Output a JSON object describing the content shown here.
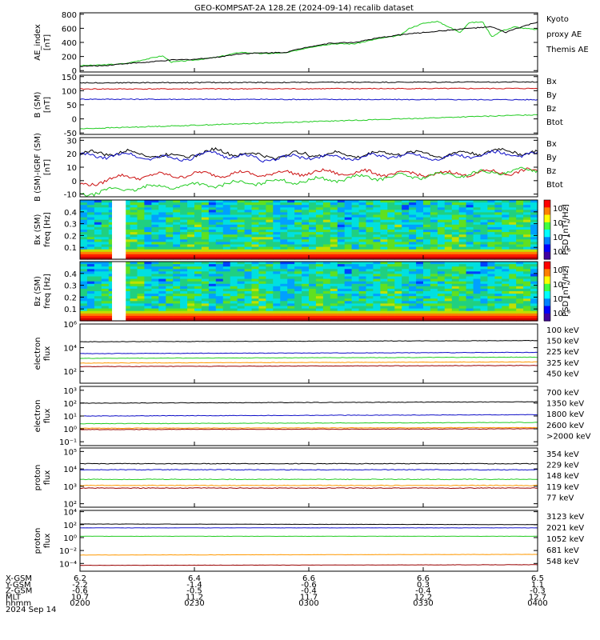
{
  "title": "GEO-KOMPSAT-2A 128.2E (2024-09-14) recalib dataset",
  "colors": {
    "black": "#000000",
    "blue": "#1010c8",
    "green": "#22cc22",
    "red": "#cc1010",
    "orange": "#ff9900",
    "darkred": "#990000",
    "lightgreen": "#33dd33"
  },
  "chart_data": [
    {
      "type": "line",
      "name": "ae",
      "ylabel": "AE_index\n[nT]",
      "ylim": [
        -20,
        820
      ],
      "yticks": [
        {
          "v": 800,
          "t": "800"
        },
        {
          "v": 600,
          "t": "600"
        },
        {
          "v": 400,
          "t": "400"
        },
        {
          "v": 200,
          "t": "200"
        },
        {
          "v": 0,
          "t": "0"
        }
      ],
      "legend": [
        {
          "text": "Kyoto",
          "color": "green"
        },
        {
          "text": "proxy AE",
          "color": "green"
        },
        {
          "text": "Themis AE",
          "color": "black"
        }
      ],
      "series": [
        {
          "name": "Kyoto",
          "color": "green",
          "x": [
            0,
            0.05,
            0.1,
            0.15,
            0.18,
            0.2,
            0.25,
            0.3,
            0.35,
            0.4,
            0.45,
            0.5,
            0.55,
            0.6,
            0.65,
            0.7,
            0.72,
            0.75,
            0.78,
            0.8,
            0.83,
            0.85,
            0.88,
            0.9,
            0.92,
            0.95,
            0.97,
            1.0
          ],
          "y": [
            70,
            80,
            100,
            170,
            210,
            120,
            150,
            190,
            260,
            240,
            250,
            330,
            380,
            380,
            450,
            500,
            600,
            670,
            700,
            640,
            540,
            680,
            690,
            480,
            560,
            620,
            600,
            580
          ]
        },
        {
          "name": "Themis AE",
          "color": "black",
          "x": [
            0,
            0.05,
            0.1,
            0.15,
            0.2,
            0.25,
            0.3,
            0.35,
            0.4,
            0.45,
            0.5,
            0.55,
            0.6,
            0.65,
            0.7,
            0.75,
            0.8,
            0.85,
            0.9,
            0.93,
            0.95,
            1.0
          ],
          "y": [
            60,
            70,
            100,
            120,
            150,
            160,
            190,
            240,
            250,
            260,
            340,
            390,
            400,
            460,
            510,
            540,
            570,
            600,
            620,
            540,
            590,
            690
          ]
        }
      ]
    },
    {
      "type": "line",
      "name": "bsm",
      "ylabel": "B (SM)\n[nT]",
      "ylim": [
        -55,
        155
      ],
      "yticks": [
        {
          "v": 150,
          "t": "150"
        },
        {
          "v": 100,
          "t": "100"
        },
        {
          "v": 50,
          "t": "50"
        },
        {
          "v": 0,
          "t": "0"
        },
        {
          "v": -50,
          "t": "-50"
        }
      ],
      "legend": [
        {
          "text": "Bx",
          "color": "blue"
        },
        {
          "text": "By",
          "color": "green"
        },
        {
          "text": "Bz",
          "color": "red"
        },
        {
          "text": "Btot",
          "color": "black"
        }
      ],
      "series": [
        {
          "name": "Btot",
          "color": "black",
          "x": [
            0,
            1
          ],
          "y": [
            128,
            131
          ]
        },
        {
          "name": "Bz",
          "color": "red",
          "x": [
            0,
            1
          ],
          "y": [
            106,
            108
          ]
        },
        {
          "name": "Bx",
          "color": "blue",
          "x": [
            0,
            1
          ],
          "y": [
            70,
            68
          ]
        },
        {
          "name": "By",
          "color": "green",
          "x": [
            0,
            0.5,
            1
          ],
          "y": [
            -35,
            -10,
            15
          ]
        }
      ]
    },
    {
      "type": "line",
      "name": "bdiff",
      "ylabel": "B (SM)-IGRF (SM)\n[nT]",
      "ylim": [
        -12,
        32
      ],
      "yticks": [
        {
          "v": 30,
          "t": "30"
        },
        {
          "v": 20,
          "t": "20"
        },
        {
          "v": 10,
          "t": "10"
        },
        {
          "v": 0,
          "t": "0"
        },
        {
          "v": -10,
          "t": "-10"
        }
      ],
      "legend": [
        {
          "text": "Bx",
          "color": "blue"
        },
        {
          "text": "By",
          "color": "green"
        },
        {
          "text": "Bz",
          "color": "red"
        },
        {
          "text": "Btot",
          "color": "black"
        }
      ],
      "series": [
        {
          "name": "Btot",
          "color": "black",
          "x": [
            0,
            0.1,
            0.2,
            0.3,
            0.4,
            0.5,
            0.6,
            0.7,
            0.8,
            0.9,
            1.0
          ],
          "y": [
            20,
            21,
            18,
            22,
            18,
            20,
            19,
            21,
            19,
            22,
            21
          ]
        },
        {
          "name": "Bx",
          "color": "blue",
          "x": [
            0,
            0.1,
            0.2,
            0.3,
            0.4,
            0.5,
            0.6,
            0.7,
            0.8,
            0.9,
            1.0
          ],
          "y": [
            18,
            19,
            16,
            20,
            16,
            18,
            17,
            19,
            17,
            20,
            19
          ]
        },
        {
          "name": "Bz",
          "color": "red",
          "x": [
            0,
            0.05,
            0.1,
            0.2,
            0.3,
            0.4,
            0.5,
            0.6,
            0.7,
            0.8,
            0.9,
            1.0
          ],
          "y": [
            -4,
            0,
            3,
            4,
            5,
            5,
            6,
            6,
            5,
            5,
            6,
            7
          ]
        },
        {
          "name": "By",
          "color": "green",
          "x": [
            0,
            0.1,
            0.2,
            0.3,
            0.4,
            0.5,
            0.6,
            0.7,
            0.8,
            0.9,
            1.0
          ],
          "y": [
            -10,
            -6,
            -4,
            -3,
            -1,
            0,
            2,
            3,
            4,
            6,
            8
          ]
        }
      ]
    },
    {
      "type": "heatmap",
      "name": "bx-spec",
      "ylabel": "Bx (SM)\nfreq [Hz]",
      "ylim": [
        0,
        0.5
      ],
      "yticks": [
        {
          "v": 0.4,
          "t": "0.4"
        },
        {
          "v": 0.3,
          "t": "0.3"
        },
        {
          "v": 0.2,
          "t": "0.2"
        },
        {
          "v": 0.1,
          "t": "0.1"
        }
      ],
      "gap": [
        0.07,
        0.1
      ],
      "colorbar_label": "PSD [nT²/Hz]",
      "colorbar_ticks": [
        "10⁰",
        "10⁻²",
        "10⁻⁴",
        "10⁻⁶"
      ]
    },
    {
      "type": "heatmap",
      "name": "bz-spec",
      "ylabel": "Bz (SM)\nfreq [Hz]",
      "ylim": [
        0,
        0.5
      ],
      "yticks": [
        {
          "v": 0.4,
          "t": "0.4"
        },
        {
          "v": 0.3,
          "t": "0.3"
        },
        {
          "v": 0.2,
          "t": "0.2"
        },
        {
          "v": 0.1,
          "t": "0.1"
        }
      ],
      "gap": [
        0.07,
        0.1
      ],
      "colorbar_label": "PSD [nT²/Hz]",
      "colorbar_ticks": [
        "10⁰",
        "10⁻²",
        "10⁻⁴",
        "10⁻⁶"
      ]
    },
    {
      "type": "line",
      "name": "e-low",
      "log": true,
      "ylabel": "electron\nflux",
      "ylim": [
        1,
        6
      ],
      "yticks": [
        {
          "v": 6,
          "t": "10⁶"
        },
        {
          "v": 4,
          "t": "10⁴"
        },
        {
          "v": 2,
          "t": "10²"
        }
      ],
      "legend": [
        {
          "text": "100 keV",
          "color": "black"
        },
        {
          "text": "150 keV",
          "color": "blue"
        },
        {
          "text": "225 keV",
          "color": "green"
        },
        {
          "text": "325 keV",
          "color": "orange"
        },
        {
          "text": "450 keV",
          "color": "darkred"
        }
      ],
      "series": [
        {
          "name": "100 keV",
          "color": "black",
          "x": [
            0,
            1
          ],
          "y": [
            4.5,
            4.6
          ]
        },
        {
          "name": "150 keV",
          "color": "blue",
          "x": [
            0,
            1
          ],
          "y": [
            3.5,
            3.6
          ]
        },
        {
          "name": "225 keV",
          "color": "green",
          "x": [
            0,
            1
          ],
          "y": [
            3.1,
            3.2
          ]
        },
        {
          "name": "325 keV",
          "color": "orange",
          "x": [
            0,
            1
          ],
          "y": [
            2.7,
            2.8
          ]
        },
        {
          "name": "450 keV",
          "color": "darkred",
          "x": [
            0,
            1
          ],
          "y": [
            2.4,
            2.5
          ]
        }
      ]
    },
    {
      "type": "line",
      "name": "e-high",
      "log": true,
      "ylabel": "electron\nflux",
      "ylim": [
        -1.3,
        3.3
      ],
      "yticks": [
        {
          "v": 3,
          "t": "10³"
        },
        {
          "v": 2,
          "t": "10²"
        },
        {
          "v": 1,
          "t": "10¹"
        },
        {
          "v": 0,
          "t": "10⁰"
        },
        {
          "v": -1,
          "t": "10⁻¹"
        }
      ],
      "legend": [
        {
          "text": "700 keV",
          "color": "black"
        },
        {
          "text": "1350 keV",
          "color": "blue"
        },
        {
          "text": "1800 keV",
          "color": "green"
        },
        {
          "text": "2600 keV",
          "color": "orange"
        },
        {
          "text": ">2000 keV",
          "color": "darkred"
        }
      ],
      "series": [
        {
          "name": "700 keV",
          "color": "black",
          "x": [
            0,
            1
          ],
          "y": [
            2.0,
            2.1
          ]
        },
        {
          "name": "1350 keV",
          "color": "blue",
          "x": [
            0,
            1
          ],
          "y": [
            1.0,
            1.1
          ]
        },
        {
          "name": "1800 keV",
          "color": "green",
          "x": [
            0,
            1
          ],
          "y": [
            0.4,
            0.5
          ]
        },
        {
          "name": "2600 keV",
          "color": "orange",
          "x": [
            0,
            1
          ],
          "y": [
            0.05,
            0.1
          ]
        },
        {
          "name": ">2000 keV",
          "color": "darkred",
          "x": [
            0,
            1
          ],
          "y": [
            -0.05,
            0.0
          ]
        }
      ]
    },
    {
      "type": "line",
      "name": "p-low",
      "log": true,
      "ylabel": "proton\nflux",
      "ylim": [
        1.8,
        5.2
      ],
      "yticks": [
        {
          "v": 5,
          "t": "10⁵"
        },
        {
          "v": 4,
          "t": "10⁴"
        },
        {
          "v": 3,
          "t": "10³"
        },
        {
          "v": 2,
          "t": "10²"
        }
      ],
      "legend": [
        {
          "text": "354 keV",
          "color": "darkred"
        },
        {
          "text": "229 keV",
          "color": "orange"
        },
        {
          "text": "148 keV",
          "color": "green"
        },
        {
          "text": "119 keV",
          "color": "blue"
        },
        {
          "text": "77 keV",
          "color": "black"
        }
      ],
      "series": [
        {
          "name": "77 keV",
          "color": "black",
          "x": [
            0,
            1
          ],
          "y": [
            4.3,
            4.3
          ]
        },
        {
          "name": "119 keV",
          "color": "blue",
          "x": [
            0,
            1
          ],
          "y": [
            3.95,
            3.95
          ]
        },
        {
          "name": "148 keV",
          "color": "green",
          "x": [
            0,
            1
          ],
          "y": [
            3.4,
            3.4
          ]
        },
        {
          "name": "229 keV",
          "color": "orange",
          "x": [
            0,
            1
          ],
          "y": [
            3.05,
            3.05
          ]
        },
        {
          "name": "354 keV",
          "color": "darkred",
          "x": [
            0,
            1
          ],
          "y": [
            2.9,
            2.9
          ]
        }
      ]
    },
    {
      "type": "line",
      "name": "p-high",
      "log": true,
      "ylabel": "proton\nflux",
      "ylim": [
        -5.2,
        4.2
      ],
      "yticks": [
        {
          "v": 4,
          "t": "10⁴"
        },
        {
          "v": 2,
          "t": "10²"
        },
        {
          "v": 0,
          "t": "10⁰"
        },
        {
          "v": -2,
          "t": "10⁻²"
        },
        {
          "v": -4,
          "t": "10⁻⁴"
        }
      ],
      "legend": [
        {
          "text": "3123 keV",
          "color": "darkred"
        },
        {
          "text": "2021 keV",
          "color": "orange"
        },
        {
          "text": "1052 keV",
          "color": "green"
        },
        {
          "text": "681 keV",
          "color": "blue"
        },
        {
          "text": "548 keV",
          "color": "black"
        }
      ],
      "series": [
        {
          "name": "548 keV",
          "color": "black",
          "x": [
            0,
            1
          ],
          "y": [
            2.1,
            2.0
          ]
        },
        {
          "name": "681 keV",
          "color": "blue",
          "x": [
            0,
            1
          ],
          "y": [
            1.5,
            1.5
          ]
        },
        {
          "name": "1052 keV",
          "color": "green",
          "x": [
            0,
            1
          ],
          "y": [
            0.2,
            0.2
          ]
        },
        {
          "name": "2021 keV",
          "color": "orange",
          "x": [
            0,
            1
          ],
          "y": [
            -2.7,
            -2.6
          ]
        },
        {
          "name": "3123 keV",
          "color": "darkred",
          "x": [
            0,
            1
          ],
          "y": [
            -4.3,
            -4.2
          ]
        }
      ]
    }
  ],
  "time_axis": {
    "row_labels": [
      "X-GSM",
      "Y-GSM",
      "Z-GSM",
      "MLT",
      "hhmm"
    ],
    "date_label": "2024 Sep 14",
    "columns": [
      {
        "x": 0.0,
        "vals": [
          "6.2",
          "-2.2",
          "-0.6",
          "10.7",
          "0200"
        ]
      },
      {
        "x": 0.25,
        "vals": [
          "6.4",
          "-1.4",
          "-0.5",
          "11.2",
          "0230"
        ]
      },
      {
        "x": 0.5,
        "vals": [
          "6.6",
          "-0.6",
          "-0.4",
          "11.7",
          "0300"
        ]
      },
      {
        "x": 0.75,
        "vals": [
          "6.6",
          "0.3",
          "-0.4",
          "12.2",
          "0330"
        ]
      },
      {
        "x": 1.0,
        "vals": [
          "6.5",
          "1.1",
          "-0.3",
          "12.7",
          "0400"
        ]
      }
    ]
  }
}
